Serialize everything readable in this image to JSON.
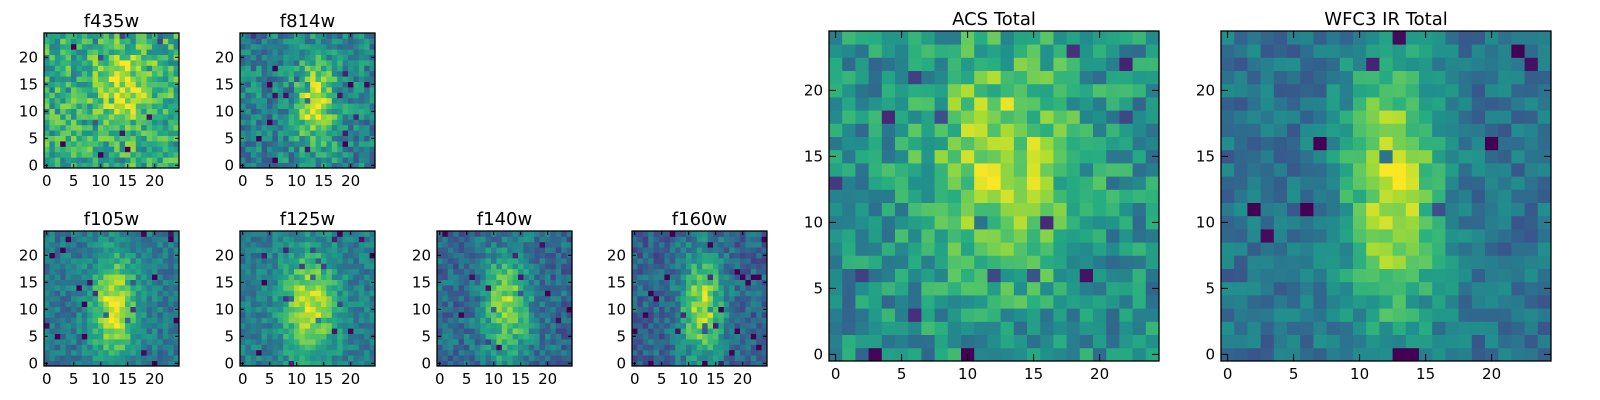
{
  "chart_data": [
    {
      "type": "heatmap",
      "title": "f435w",
      "xlim": [
        0,
        25
      ],
      "ylim": [
        0,
        25
      ],
      "xticks": [
        "0",
        "5",
        "10",
        "15",
        "20"
      ],
      "yticks": [
        "0",
        "5",
        "10",
        "15",
        "20"
      ],
      "colormap": "viridis",
      "feature": {
        "cx": 15,
        "cy": 15,
        "sx": 3.5,
        "sy": 5,
        "amp": 0.3
      },
      "noise": 0.42,
      "base": 0.62,
      "seed": 11
    },
    {
      "type": "heatmap",
      "title": "f814w",
      "xlim": [
        0,
        25
      ],
      "ylim": [
        0,
        25
      ],
      "xticks": [
        "0",
        "5",
        "10",
        "15",
        "20"
      ],
      "yticks": [
        "0",
        "5",
        "10",
        "15",
        "20"
      ],
      "colormap": "viridis",
      "feature": {
        "cx": 14,
        "cy": 12,
        "sx": 2.8,
        "sy": 6,
        "amp": 0.45
      },
      "noise": 0.38,
      "base": 0.45,
      "seed": 23
    },
    {
      "type": "heatmap",
      "title": "f105w",
      "xlim": [
        0,
        25
      ],
      "ylim": [
        0,
        25
      ],
      "xticks": [
        "0",
        "5",
        "10",
        "15",
        "20"
      ],
      "yticks": [
        "0",
        "5",
        "10",
        "15",
        "20"
      ],
      "colormap": "viridis",
      "feature": {
        "cx": 13,
        "cy": 11,
        "sx": 3,
        "sy": 7,
        "amp": 0.55
      },
      "noise": 0.25,
      "base": 0.4,
      "seed": 37
    },
    {
      "type": "heatmap",
      "title": "f125w",
      "xlim": [
        0,
        25
      ],
      "ylim": [
        0,
        25
      ],
      "xticks": [
        "0",
        "5",
        "10",
        "15",
        "20"
      ],
      "yticks": [
        "0",
        "5",
        "10",
        "15",
        "20"
      ],
      "colormap": "viridis",
      "feature": {
        "cx": 13,
        "cy": 11,
        "sx": 3.5,
        "sy": 7,
        "amp": 0.5
      },
      "noise": 0.25,
      "base": 0.42,
      "seed": 41
    },
    {
      "type": "heatmap",
      "title": "f140w",
      "xlim": [
        0,
        25
      ],
      "ylim": [
        0,
        25
      ],
      "xticks": [
        "0",
        "5",
        "10",
        "15",
        "20"
      ],
      "yticks": [
        "0",
        "5",
        "10",
        "15",
        "20"
      ],
      "colormap": "viridis",
      "feature": {
        "cx": 13,
        "cy": 11,
        "sx": 3,
        "sy": 7,
        "amp": 0.5
      },
      "noise": 0.3,
      "base": 0.35,
      "seed": 53
    },
    {
      "type": "heatmap",
      "title": "f160w",
      "xlim": [
        0,
        25
      ],
      "ylim": [
        0,
        25
      ],
      "xticks": [
        "0",
        "5",
        "10",
        "15",
        "20"
      ],
      "yticks": [
        "0",
        "5",
        "10",
        "15",
        "20"
      ],
      "colormap": "viridis",
      "feature": {
        "cx": 13,
        "cy": 11,
        "sx": 2.8,
        "sy": 7,
        "amp": 0.55
      },
      "noise": 0.28,
      "base": 0.33,
      "seed": 67
    },
    {
      "type": "heatmap",
      "title": "ACS Total",
      "xlim": [
        0,
        25
      ],
      "ylim": [
        0,
        25
      ],
      "xticks": [
        "0",
        "5",
        "10",
        "15",
        "20"
      ],
      "yticks": [
        "0",
        "5",
        "10",
        "15",
        "20"
      ],
      "colormap": "viridis",
      "feature": {
        "cx": 13,
        "cy": 15,
        "sx": 4,
        "sy": 6,
        "amp": 0.4
      },
      "noise": 0.36,
      "base": 0.5,
      "seed": 79
    },
    {
      "type": "heatmap",
      "title": "WFC3 IR Total",
      "xlim": [
        0,
        25
      ],
      "ylim": [
        0,
        25
      ],
      "xticks": [
        "0",
        "5",
        "10",
        "15",
        "20"
      ],
      "yticks": [
        "0",
        "5",
        "10",
        "15",
        "20"
      ],
      "colormap": "viridis",
      "feature": {
        "cx": 13,
        "cy": 13,
        "sx": 2.6,
        "sy": 7.5,
        "amp": 0.55
      },
      "noise": 0.24,
      "base": 0.38,
      "seed": 97
    }
  ]
}
